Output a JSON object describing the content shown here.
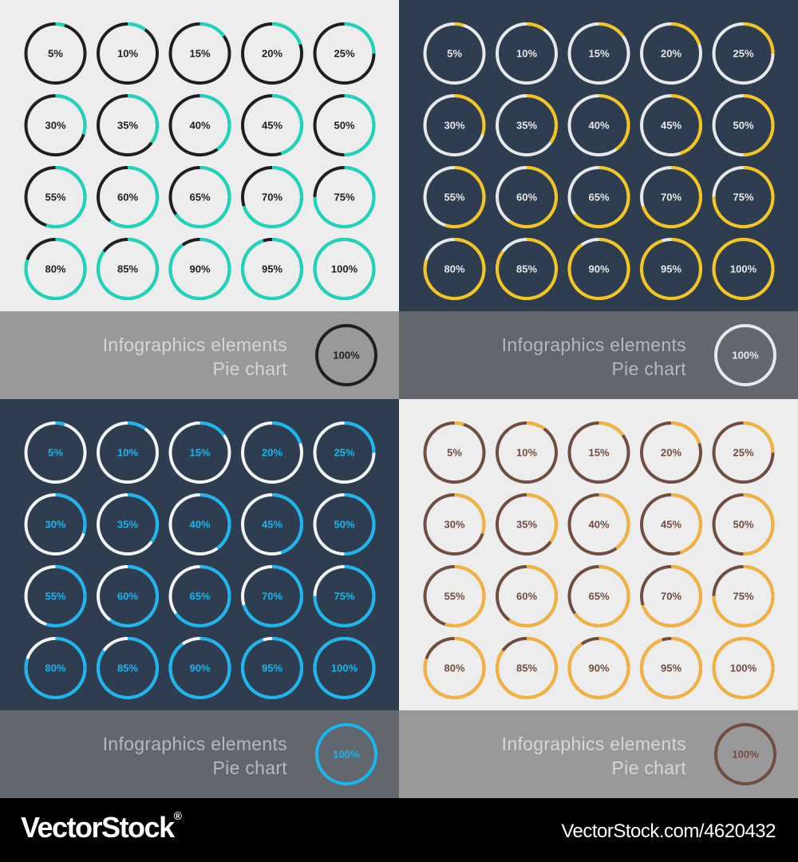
{
  "chart_data": [
    {
      "type": "pie",
      "theme": "light-teal",
      "background": "#ededed",
      "track_color": "#1f1f1f",
      "fill_color": "#19d7bf",
      "label_color": "#1f1f1f",
      "values": [
        5,
        10,
        15,
        20,
        25,
        30,
        35,
        40,
        45,
        50,
        55,
        60,
        65,
        70,
        75,
        80,
        85,
        90,
        95,
        100
      ],
      "labels": [
        "5%",
        "10%",
        "15%",
        "20%",
        "25%",
        "30%",
        "35%",
        "40%",
        "45%",
        "50%",
        "55%",
        "60%",
        "65%",
        "70%",
        "75%",
        "80%",
        "85%",
        "90%",
        "95%",
        "100%"
      ],
      "banner": {
        "line1": "Infographics elements",
        "line2": "Pie chart",
        "background": "#999999",
        "text_color": "#d6d6d6",
        "sample_label": "100%",
        "sample_stroke": "#1f1f1f",
        "sample_label_color": "#1f1f1f"
      }
    },
    {
      "type": "pie",
      "theme": "dark-yellow",
      "background": "#2e3d50",
      "track_color": "#e6e8ea",
      "fill_color": "#f5c51e",
      "label_color": "#e6e8ea",
      "values": [
        5,
        10,
        15,
        20,
        25,
        30,
        35,
        40,
        45,
        50,
        55,
        60,
        65,
        70,
        75,
        80,
        85,
        90,
        95,
        100
      ],
      "labels": [
        "5%",
        "10%",
        "15%",
        "20%",
        "25%",
        "30%",
        "35%",
        "40%",
        "45%",
        "50%",
        "55%",
        "60%",
        "65%",
        "70%",
        "75%",
        "80%",
        "85%",
        "90%",
        "95%",
        "100%"
      ],
      "banner": {
        "line1": "Infographics elements",
        "line2": "Pie chart",
        "background": "#62676e",
        "text_color": "#b5b8bc",
        "sample_label": "100%",
        "sample_stroke": "#e6e8ea",
        "sample_label_color": "#e6e8ea"
      }
    },
    {
      "type": "pie",
      "theme": "dark-blue",
      "background": "#2e3d50",
      "track_color": "#f2f4f5",
      "fill_color": "#1ab6f0",
      "label_color": "#1ab6f0",
      "values": [
        5,
        10,
        15,
        20,
        25,
        30,
        35,
        40,
        45,
        50,
        55,
        60,
        65,
        70,
        75,
        80,
        85,
        90,
        95,
        100
      ],
      "labels": [
        "5%",
        "10%",
        "15%",
        "20%",
        "25%",
        "30%",
        "35%",
        "40%",
        "45%",
        "50%",
        "55%",
        "60%",
        "65%",
        "70%",
        "75%",
        "80%",
        "85%",
        "90%",
        "95%",
        "100%"
      ],
      "banner": {
        "line1": "Infographics elements",
        "line2": "Pie chart",
        "background": "#62676e",
        "text_color": "#b5b8bc",
        "sample_label": "100%",
        "sample_stroke": "#1ab6f0",
        "sample_label_color": "#1ab6f0"
      }
    },
    {
      "type": "pie",
      "theme": "light-brown",
      "background": "#ededed",
      "track_color": "#704d40",
      "fill_color": "#f4b23c",
      "label_color": "#704d40",
      "values": [
        5,
        10,
        15,
        20,
        25,
        30,
        35,
        40,
        45,
        50,
        55,
        60,
        65,
        70,
        75,
        80,
        85,
        90,
        95,
        100
      ],
      "labels": [
        "5%",
        "10%",
        "15%",
        "20%",
        "25%",
        "30%",
        "35%",
        "40%",
        "45%",
        "50%",
        "55%",
        "60%",
        "65%",
        "70%",
        "75%",
        "80%",
        "85%",
        "90%",
        "95%",
        "100%"
      ],
      "banner": {
        "line1": "Infographics elements",
        "line2": "Pie chart",
        "background": "#999999",
        "text_color": "#d6d6d6",
        "sample_label": "100%",
        "sample_stroke": "#704d40",
        "sample_label_color": "#704d40"
      }
    }
  ],
  "footer": {
    "brand": "VectorStock",
    "registered_mark": "®",
    "url": "VectorStock.com/4620432"
  }
}
